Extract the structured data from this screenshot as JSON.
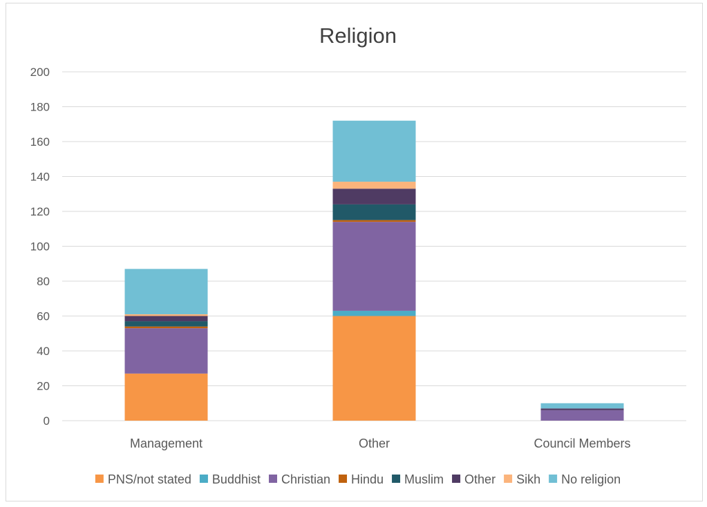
{
  "chart_data": {
    "type": "bar",
    "stacked": true,
    "title": "Religion",
    "xlabel": "",
    "ylabel": "",
    "ylim": [
      0,
      200
    ],
    "yticks": [
      0,
      20,
      40,
      60,
      80,
      100,
      120,
      140,
      160,
      180,
      200
    ],
    "grid": true,
    "legend_position": "bottom",
    "categories": [
      "Management",
      "Other",
      "Council Members"
    ],
    "series": [
      {
        "name": "PNS/not stated",
        "color": "#f79646",
        "values": [
          27,
          60,
          0
        ]
      },
      {
        "name": "Buddhist",
        "color": "#4bacc6",
        "values": [
          0,
          3,
          0
        ]
      },
      {
        "name": "Christian",
        "color": "#8064a2",
        "values": [
          26,
          51,
          6
        ]
      },
      {
        "name": "Hindu",
        "color": "#c0620e",
        "values": [
          1,
          1,
          0
        ]
      },
      {
        "name": "Muslim",
        "color": "#215968",
        "values": [
          3,
          9,
          0
        ]
      },
      {
        "name": "Other",
        "color": "#4f3b63",
        "values": [
          3,
          9,
          1
        ]
      },
      {
        "name": "Sikh",
        "color": "#fbb47c",
        "values": [
          1,
          4,
          0
        ]
      },
      {
        "name": "No religion",
        "color": "#71bfd4",
        "values": [
          26,
          35,
          3
        ]
      }
    ]
  }
}
